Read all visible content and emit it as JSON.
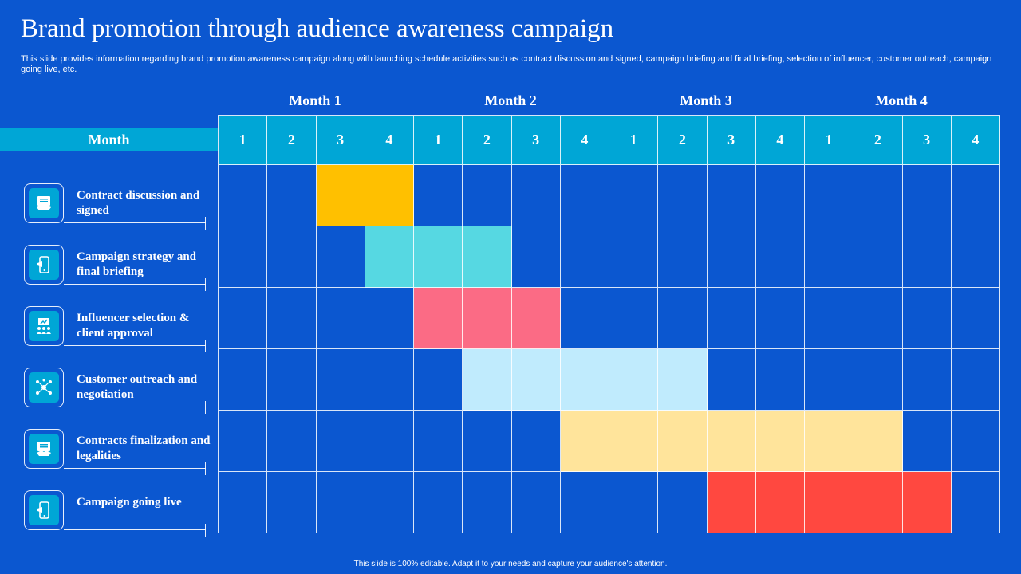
{
  "slide": {
    "title": "Brand promotion through audience awareness campaign",
    "subtitle": "This slide provides information regarding brand promotion awareness campaign along with launching schedule activities such as contract discussion and signed, campaign briefing and final briefing, selection of influencer, customer outreach, campaign going live, etc.",
    "footer": "This slide is 100% editable.  Adapt it to your needs and capture your audience's attention."
  },
  "schedule": {
    "row_header": "Month",
    "months": [
      "Month 1",
      "Month 2",
      "Month 3",
      "Month 4"
    ],
    "weeks": [
      "1",
      "2",
      "3",
      "4"
    ],
    "tasks": [
      {
        "label": "Contract discussion and signed",
        "icon": "handshake-icon",
        "start_week": 3,
        "end_week": 4,
        "color": "#ffc000"
      },
      {
        "label": "Campaign strategy and final briefing",
        "icon": "phone-megaphone-icon",
        "start_week": 4,
        "end_week": 6,
        "color": "#56d8e2"
      },
      {
        "label": "Influencer selection & client approval",
        "icon": "presentation-team-icon",
        "start_week": 5,
        "end_week": 7,
        "color": "#fb6b85"
      },
      {
        "label": "Customer outreach and negotiation",
        "icon": "network-people-icon",
        "start_week": 6,
        "end_week": 10,
        "color": "#c0ebfd"
      },
      {
        "label": "Contracts finalization and legalities",
        "icon": "handshake-icon",
        "start_week": 8,
        "end_week": 14,
        "color": "#ffe49b"
      },
      {
        "label": "Campaign going live",
        "icon": "phone-megaphone-icon",
        "start_week": 11,
        "end_week": 15,
        "color": "#ff4840"
      }
    ]
  },
  "colors": {
    "background": "#0b57d0",
    "header_band": "#00a6d6"
  }
}
